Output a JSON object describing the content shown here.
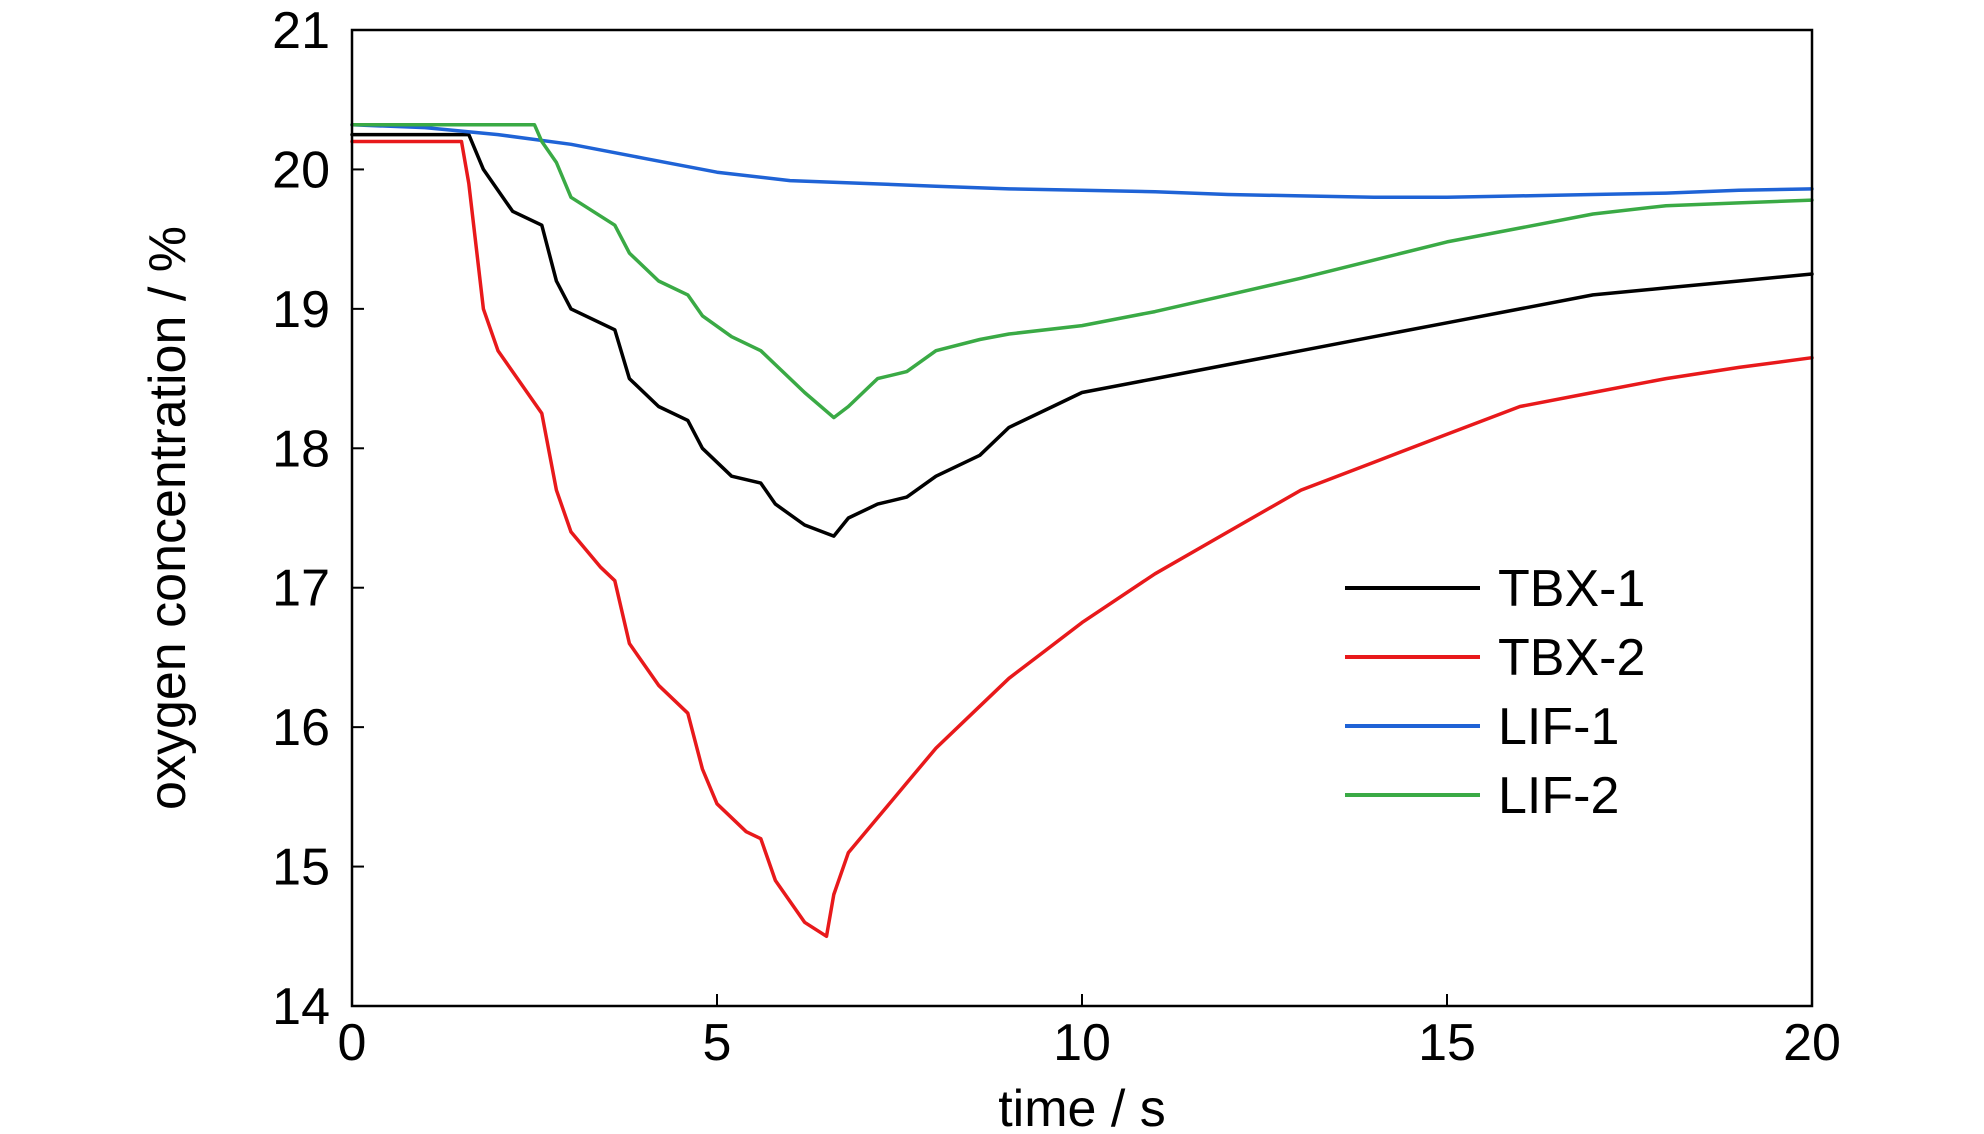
{
  "chart_data": {
    "type": "line",
    "title": "",
    "xlabel": "time / s",
    "ylabel": "oxygen concentration / %",
    "xlim": [
      0,
      20
    ],
    "ylim": [
      14,
      21
    ],
    "xticks": [
      0,
      5,
      10,
      15,
      20
    ],
    "yticks": [
      14,
      15,
      16,
      17,
      18,
      19,
      20,
      21
    ],
    "xtick_labels": [
      "0",
      "5",
      "10",
      "15",
      "20"
    ],
    "ytick_labels": [
      "14",
      "15",
      "16",
      "17",
      "18",
      "19",
      "20",
      "21"
    ],
    "grid": false,
    "legend_position": "center-right",
    "series": [
      {
        "name": "TBX-1",
        "color": "#000000",
        "x": [
          0,
          1.6,
          1.8,
          2.2,
          2.6,
          2.8,
          3.0,
          3.6,
          3.8,
          4.2,
          4.6,
          4.8,
          5.2,
          5.6,
          5.8,
          6.2,
          6.6,
          6.8,
          7.2,
          7.6,
          8.0,
          8.6,
          9.0,
          9.6,
          10,
          11,
          12,
          13,
          14,
          15,
          16,
          17,
          18,
          19,
          20
        ],
        "y": [
          20.25,
          20.25,
          20.0,
          19.7,
          19.6,
          19.2,
          19.0,
          18.85,
          18.5,
          18.3,
          18.2,
          18.0,
          17.8,
          17.75,
          17.6,
          17.45,
          17.37,
          17.5,
          17.6,
          17.65,
          17.8,
          17.95,
          18.15,
          18.3,
          18.4,
          18.5,
          18.6,
          18.7,
          18.8,
          18.9,
          19.0,
          19.1,
          19.15,
          19.2,
          19.25
        ]
      },
      {
        "name": "TBX-2",
        "color": "#e8191b",
        "x": [
          0,
          1.5,
          1.6,
          1.8,
          2.0,
          2.4,
          2.6,
          2.8,
          3.0,
          3.4,
          3.6,
          3.8,
          4.2,
          4.6,
          4.8,
          5.0,
          5.4,
          5.6,
          5.8,
          6.2,
          6.5,
          6.6,
          6.8,
          7.2,
          7.6,
          8.0,
          8.5,
          9.0,
          9.5,
          10,
          11,
          12,
          13,
          14,
          15,
          16,
          17,
          18,
          19,
          20
        ],
        "y": [
          20.2,
          20.2,
          19.9,
          19.0,
          18.7,
          18.4,
          18.25,
          17.7,
          17.4,
          17.15,
          17.05,
          16.6,
          16.3,
          16.1,
          15.7,
          15.45,
          15.25,
          15.2,
          14.9,
          14.6,
          14.5,
          14.8,
          15.1,
          15.35,
          15.6,
          15.85,
          16.1,
          16.35,
          16.55,
          16.75,
          17.1,
          17.4,
          17.7,
          17.9,
          18.1,
          18.3,
          18.4,
          18.5,
          18.58,
          18.65
        ]
      },
      {
        "name": "LIF-1",
        "color": "#1f63d6",
        "x": [
          0,
          1,
          2,
          3,
          4,
          5,
          6,
          7,
          8,
          9,
          10,
          11,
          12,
          13,
          14,
          15,
          16,
          17,
          18,
          19,
          20
        ],
        "y": [
          20.32,
          20.3,
          20.25,
          20.18,
          20.08,
          19.98,
          19.92,
          19.9,
          19.88,
          19.86,
          19.85,
          19.84,
          19.82,
          19.81,
          19.8,
          19.8,
          19.81,
          19.82,
          19.83,
          19.85,
          19.86
        ]
      },
      {
        "name": "LIF-2",
        "color": "#3aaa45",
        "x": [
          0,
          1,
          2,
          2.5,
          2.6,
          2.8,
          3.0,
          3.6,
          3.8,
          4.2,
          4.6,
          4.8,
          5.2,
          5.6,
          5.8,
          6.2,
          6.6,
          6.8,
          7.2,
          7.6,
          8.0,
          8.6,
          9.0,
          10,
          11,
          12,
          13,
          14,
          15,
          16,
          17,
          18,
          19,
          20
        ],
        "y": [
          20.32,
          20.32,
          20.32,
          20.32,
          20.2,
          20.05,
          19.8,
          19.6,
          19.4,
          19.2,
          19.1,
          18.95,
          18.8,
          18.7,
          18.6,
          18.4,
          18.22,
          18.3,
          18.5,
          18.55,
          18.7,
          18.78,
          18.82,
          18.88,
          18.98,
          19.1,
          19.22,
          19.35,
          19.48,
          19.58,
          19.68,
          19.74,
          19.76,
          19.78
        ]
      }
    ]
  }
}
